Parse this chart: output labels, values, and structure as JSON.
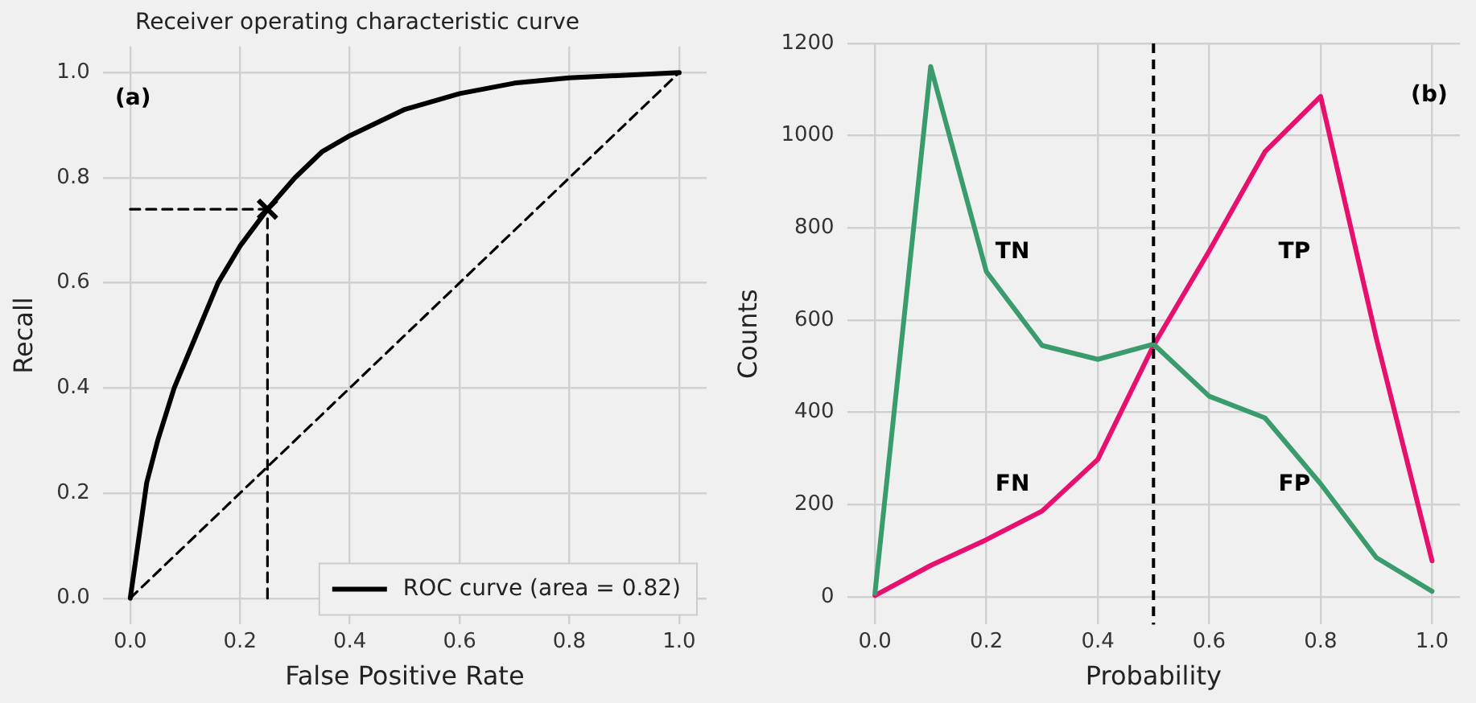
{
  "chart_data": [
    {
      "type": "line",
      "title": "Receiver operating characteristic curve",
      "xlabel": "False Positive Rate",
      "ylabel": "Recall",
      "xlim": [
        -0.05,
        1.05
      ],
      "ylim": [
        -0.05,
        1.05
      ],
      "xticks": [
        {
          "value": 0,
          "label": "0.0"
        },
        {
          "value": 0.2,
          "label": "0.2"
        },
        {
          "value": 0.4,
          "label": "0.4"
        },
        {
          "value": 0.6,
          "label": "0.6"
        },
        {
          "value": 0.8,
          "label": "0.8"
        },
        {
          "value": 1,
          "label": "1.0"
        }
      ],
      "yticks": [
        {
          "value": 0,
          "label": "0.0"
        },
        {
          "value": 0.2,
          "label": "0.2"
        },
        {
          "value": 0.4,
          "label": "0.4"
        },
        {
          "value": 0.6,
          "label": "0.6"
        },
        {
          "value": 0.8,
          "label": "0.8"
        },
        {
          "value": 1,
          "label": "1.0"
        }
      ],
      "grid": true,
      "legend": "bottom right",
      "marker": "none",
      "series": [
        {
          "name": "ROC curve (area = 0.82)",
          "color": "#000000",
          "line_style": "solid",
          "x": [
            0,
            0.03,
            0.05,
            0.08,
            0.12,
            0.16,
            0.2,
            0.25,
            0.3,
            0.35,
            0.4,
            0.5,
            0.6,
            0.7,
            0.8,
            1
          ],
          "values": [
            0,
            0.22,
            0.3,
            0.4,
            0.5,
            0.6,
            0.67,
            0.74,
            0.8,
            0.85,
            0.88,
            0.93,
            0.96,
            0.98,
            0.99,
            1
          ]
        },
        {
          "color": "#000000",
          "line_style": "dashed",
          "x": [
            0,
            1
          ],
          "values": [
            0,
            1
          ]
        },
        {
          "color": "#000000",
          "line_style": "dashed",
          "x": [
            0.25,
            0.25
          ],
          "values": [
            0,
            0.74
          ]
        },
        {
          "color": "#000000",
          "line_style": "dashed",
          "x": [
            0,
            0.25
          ],
          "values": [
            0.74,
            0.74
          ]
        },
        {
          "type": "scatter",
          "color": "#000000",
          "marker": "cross",
          "x": [
            0.25
          ],
          "values": [
            0.74
          ]
        }
      ],
      "annotations": [
        "(a)"
      ]
    },
    {
      "type": "line",
      "xlabel": "Probability",
      "ylabel": "Counts",
      "xlim": [
        -0.05,
        1.05
      ],
      "ylim": [
        -60,
        1200
      ],
      "x": [
        0,
        0.1,
        0.2,
        0.3,
        0.4,
        0.5,
        0.6,
        0.7,
        0.8,
        0.9,
        1
      ],
      "xticks": [
        {
          "value": 0,
          "label": "0.0"
        },
        {
          "value": 0.2,
          "label": "0.2"
        },
        {
          "value": 0.4,
          "label": "0.4"
        },
        {
          "value": 0.6,
          "label": "0.6"
        },
        {
          "value": 0.8,
          "label": "0.8"
        },
        {
          "value": 1,
          "label": "1.0"
        }
      ],
      "yticks": [
        0,
        200,
        400,
        600,
        800,
        1000,
        1200
      ],
      "grid": true,
      "marker": "none",
      "series": [
        {
          "color": "#3a9b6c",
          "values": [
            8,
            1150,
            705,
            545,
            515,
            548,
            435,
            388,
            245,
            85,
            12
          ]
        },
        {
          "color": "#e8106e",
          "values": [
            3,
            68,
            124,
            186,
            298,
            545,
            750,
            965,
            1085,
            560,
            78
          ]
        }
      ],
      "ref_lines": [
        {
          "axis": "x",
          "value": 0.5,
          "color": "#000000",
          "line_style": "dashed"
        }
      ],
      "annotations": [
        "TN",
        "TP",
        "FN",
        "FP",
        "(b)"
      ]
    }
  ]
}
